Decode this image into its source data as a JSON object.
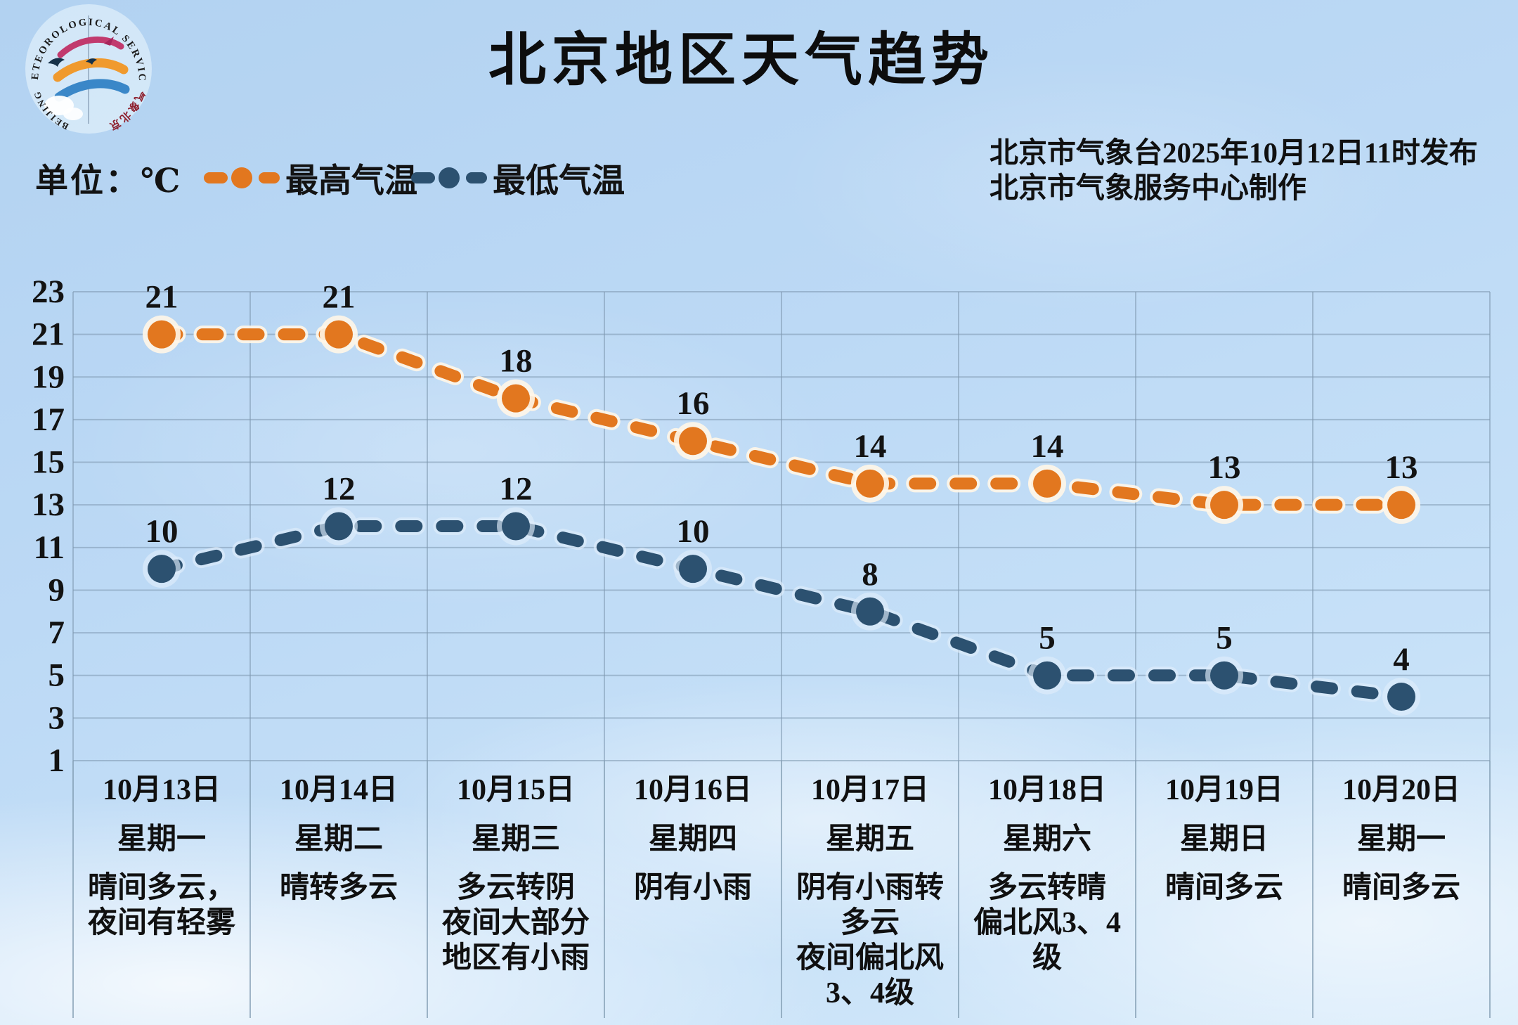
{
  "header": {
    "title": "北京地区天气趋势",
    "unit_label": "单位：℃",
    "legend": [
      {
        "label": "最高气温",
        "color": "#E2771F"
      },
      {
        "label": "最低气温",
        "color": "#2C5170"
      }
    ],
    "issuer_line1": "北京市气象台2025年10月12日11时发布",
    "issuer_line2": "北京市气象服务中心制作",
    "logo": {
      "top_text": "METEOROLOGICAL SERVICE",
      "bottom_left_text": "BEIJING",
      "bottom_right_text": "气象北京"
    }
  },
  "chart_data": {
    "type": "line",
    "title": "北京地区天气趋势",
    "unit": "℃",
    "categories": [
      "10月13日",
      "10月14日",
      "10月15日",
      "10月16日",
      "10月17日",
      "10月18日",
      "10月19日",
      "10月20日"
    ],
    "weekdays": [
      "星期一",
      "星期二",
      "星期三",
      "星期四",
      "星期五",
      "星期六",
      "星期日",
      "星期一"
    ],
    "weather": [
      "晴间多云，夜间有轻雾",
      "晴转多云",
      "多云转阴\n夜间大部分地区有小雨",
      "阴有小雨",
      "阴有小雨转多云\n夜间偏北风3、4级",
      "多云转晴\n偏北风3、4级",
      "晴间多云",
      "晴间多云"
    ],
    "series": [
      {
        "name": "最高气温",
        "color": "#E2771F",
        "values": [
          21,
          21,
          18,
          16,
          14,
          14,
          13,
          13
        ]
      },
      {
        "name": "最低气温",
        "color": "#2C5170",
        "values": [
          10,
          12,
          12,
          10,
          8,
          5,
          5,
          4
        ]
      }
    ],
    "y_ticks": [
      23,
      21,
      19,
      17,
      15,
      13,
      11,
      9,
      7,
      5,
      3,
      1
    ],
    "ylim": [
      1,
      23
    ],
    "xlabel": "",
    "ylabel": "℃",
    "grid": true,
    "line_style": "dashed",
    "legend_position": "top"
  }
}
